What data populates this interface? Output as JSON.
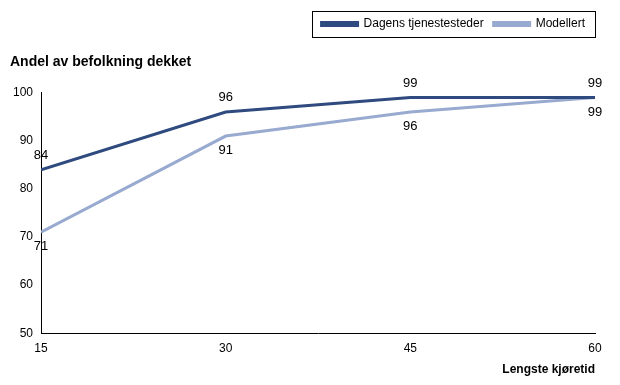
{
  "chart_data": {
    "type": "line",
    "title": "Andel av befolkning dekket",
    "x_label": "Lengste kjøretid",
    "x": [
      15,
      30,
      45,
      60
    ],
    "xlim": [
      15,
      60
    ],
    "xticks": [
      15,
      30,
      45,
      60
    ],
    "ylim": [
      50,
      100
    ],
    "yticks": [
      50,
      60,
      70,
      80,
      90,
      100
    ],
    "grid": false,
    "legend": "upper right",
    "data_labels": true,
    "series": [
      {
        "name": "Dagens tjenestesteder",
        "color": "#2e4a7e",
        "values": [
          84,
          96,
          99,
          99
        ]
      },
      {
        "name": "Modellert",
        "color": "#98aad0",
        "values": [
          71,
          91,
          96,
          99
        ]
      }
    ]
  }
}
